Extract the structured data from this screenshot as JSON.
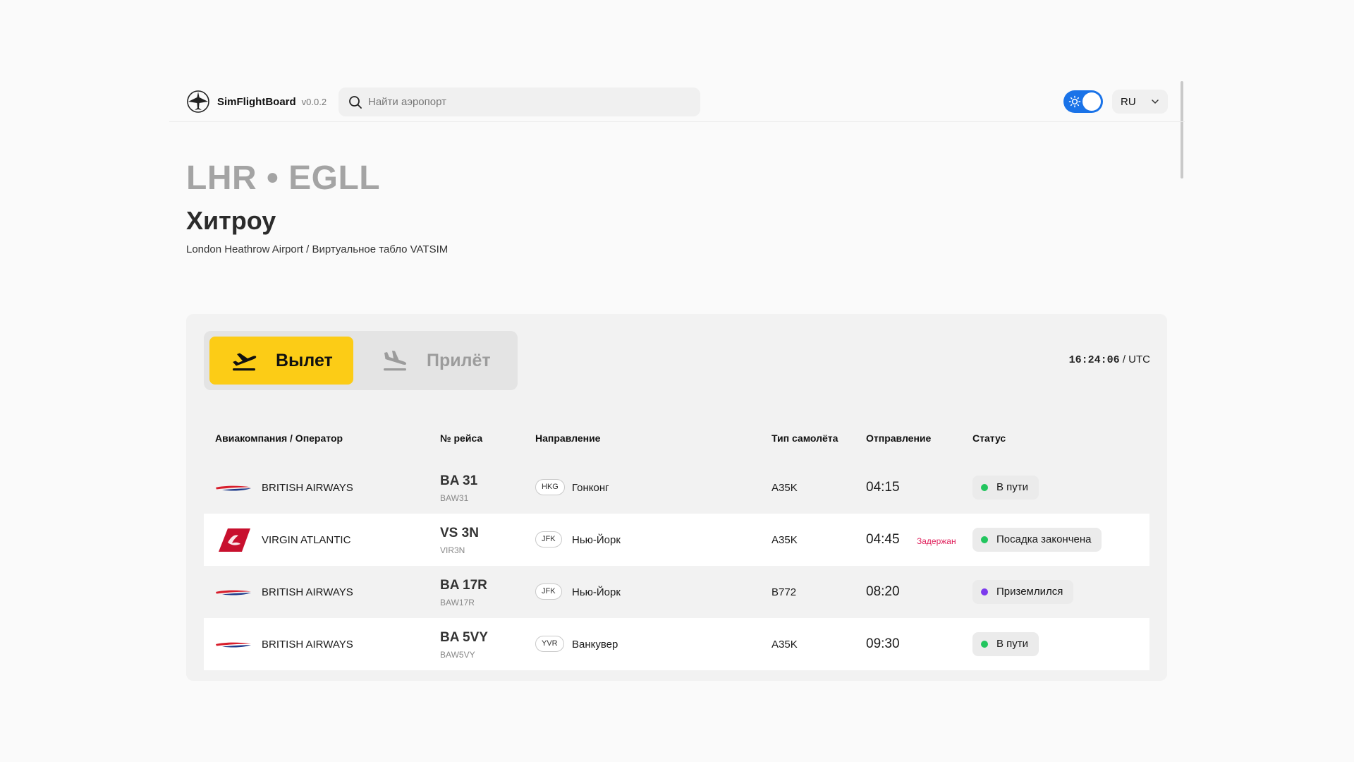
{
  "header": {
    "brand_name": "SimFlightBoard",
    "version": "v0.0.2",
    "search_placeholder": "Найти аэропорт",
    "search_value": "",
    "language": "RU",
    "theme_icon": "sun-icon"
  },
  "airport": {
    "codes": "LHR • EGLL",
    "city": "Хитроу",
    "subtitle": "London Heathrow Airport / Виртуальное табло VATSIM"
  },
  "board": {
    "tabs": [
      {
        "label": "Вылет",
        "icon": "plane-departure-icon",
        "active": true
      },
      {
        "label": "Прилёт",
        "icon": "plane-arrival-icon",
        "active": false
      }
    ],
    "clock_time": "16:24:06",
    "clock_suffix": " / UTC",
    "columns": [
      "Авиакомпания / Оператор",
      "№ рейса",
      "Направление",
      "Тип самолёта",
      "Отправление",
      "Статус"
    ],
    "rows": [
      {
        "airline": "BRITISH AIRWAYS",
        "logo": "british-airways-logo",
        "flight": "BA 31",
        "callsign": "BAW31",
        "iata": "HKG",
        "destination": "Гонконг",
        "aircraft": "A35K",
        "time": "04:15",
        "delay": "",
        "status": "В пути",
        "status_color": "#22c55e"
      },
      {
        "airline": "VIRGIN ATLANTIC",
        "logo": "virgin-atlantic-logo",
        "flight": "VS 3N",
        "callsign": "VIR3N",
        "iata": "JFK",
        "destination": "Нью-Йорк",
        "aircraft": "A35K",
        "time": "04:45",
        "delay": "Задержан",
        "status": "Посадка закончена",
        "status_color": "#22c55e"
      },
      {
        "airline": "BRITISH AIRWAYS",
        "logo": "british-airways-logo",
        "flight": "BA 17R",
        "callsign": "BAW17R",
        "iata": "JFK",
        "destination": "Нью-Йорк",
        "aircraft": "B772",
        "time": "08:20",
        "delay": "",
        "status": "Приземлился",
        "status_color": "#7c3aed"
      },
      {
        "airline": "BRITISH AIRWAYS",
        "logo": "british-airways-logo",
        "flight": "BA 5VY",
        "callsign": "BAW5VY",
        "iata": "YVR",
        "destination": "Ванкувер",
        "aircraft": "A35K",
        "time": "09:30",
        "delay": "",
        "status": "В пути",
        "status_color": "#22c55e"
      }
    ]
  },
  "colors": {
    "accent": "#fccc16",
    "toggle": "#1a73e8",
    "delay": "#e0245e"
  }
}
